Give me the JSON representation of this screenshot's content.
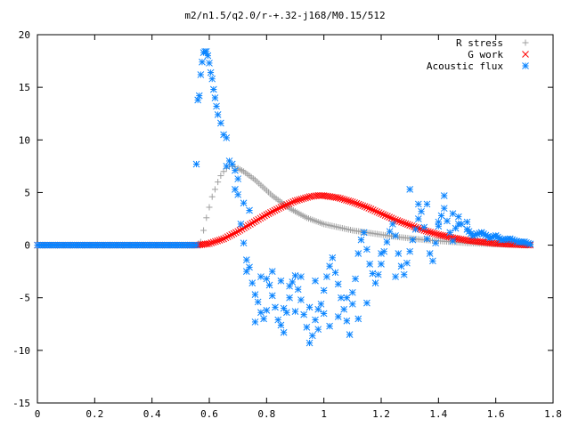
{
  "chart_data": {
    "type": "scatter",
    "title": "m2/n1.5/q2.0/r-+.32-j168/M0.15/512",
    "xlabel": "",
    "ylabel": "",
    "xlim": [
      0,
      1.8
    ],
    "ylim": [
      -15,
      20
    ],
    "grid": false,
    "legend_position": "top-right",
    "x_ticks": [
      "0",
      "0.2",
      "0.4",
      "0.6",
      "0.8",
      "1",
      "1.2",
      "1.4",
      "1.6",
      "1.8"
    ],
    "y_ticks": [
      "-15",
      "-10",
      "-5",
      "0",
      "5",
      "10",
      "15",
      "20"
    ],
    "series": [
      {
        "name": "R stress",
        "marker": "plus",
        "color": "#a0a0a0",
        "x_range": [
          0.0,
          1.72
        ],
        "points": [
          [
            0.0,
            0
          ],
          [
            0.1,
            0
          ],
          [
            0.2,
            0
          ],
          [
            0.3,
            0
          ],
          [
            0.4,
            0
          ],
          [
            0.5,
            0
          ],
          [
            0.555,
            0
          ],
          [
            0.57,
            0.3
          ],
          [
            0.58,
            1.4
          ],
          [
            0.59,
            2.6
          ],
          [
            0.6,
            3.6
          ],
          [
            0.61,
            4.6
          ],
          [
            0.62,
            5.3
          ],
          [
            0.63,
            6.0
          ],
          [
            0.64,
            6.6
          ],
          [
            0.65,
            7.0
          ],
          [
            0.66,
            7.3
          ],
          [
            0.67,
            7.5
          ],
          [
            0.68,
            7.5
          ],
          [
            0.69,
            7.45
          ],
          [
            0.7,
            7.3
          ],
          [
            0.72,
            7.0
          ],
          [
            0.74,
            6.6
          ],
          [
            0.76,
            6.2
          ],
          [
            0.78,
            5.7
          ],
          [
            0.8,
            5.2
          ],
          [
            0.82,
            4.7
          ],
          [
            0.84,
            4.3
          ],
          [
            0.86,
            3.9
          ],
          [
            0.88,
            3.5
          ],
          [
            0.9,
            3.2
          ],
          [
            0.92,
            2.9
          ],
          [
            0.94,
            2.6
          ],
          [
            0.96,
            2.4
          ],
          [
            0.98,
            2.2
          ],
          [
            1.0,
            2.0
          ],
          [
            1.05,
            1.7
          ],
          [
            1.1,
            1.4
          ],
          [
            1.15,
            1.2
          ],
          [
            1.2,
            1.0
          ],
          [
            1.25,
            0.8
          ],
          [
            1.3,
            0.65
          ],
          [
            1.35,
            0.5
          ],
          [
            1.4,
            0.4
          ],
          [
            1.45,
            0.3
          ],
          [
            1.5,
            0.2
          ],
          [
            1.55,
            0.15
          ],
          [
            1.6,
            0.1
          ],
          [
            1.65,
            0.05
          ],
          [
            1.7,
            0.02
          ],
          [
            1.72,
            0
          ]
        ]
      },
      {
        "name": "G work",
        "marker": "cross",
        "color": "#ff0000",
        "x_range": [
          0.0,
          1.72
        ],
        "points": [
          [
            0.0,
            0
          ],
          [
            0.1,
            0
          ],
          [
            0.2,
            0
          ],
          [
            0.3,
            0
          ],
          [
            0.4,
            0
          ],
          [
            0.5,
            0
          ],
          [
            0.56,
            0
          ],
          [
            0.6,
            0.15
          ],
          [
            0.65,
            0.6
          ],
          [
            0.7,
            1.3
          ],
          [
            0.75,
            2.1
          ],
          [
            0.8,
            2.9
          ],
          [
            0.85,
            3.6
          ],
          [
            0.9,
            4.2
          ],
          [
            0.95,
            4.6
          ],
          [
            0.98,
            4.72
          ],
          [
            1.0,
            4.7
          ],
          [
            1.05,
            4.5
          ],
          [
            1.1,
            4.1
          ],
          [
            1.15,
            3.6
          ],
          [
            1.2,
            3.0
          ],
          [
            1.25,
            2.4
          ],
          [
            1.3,
            1.9
          ],
          [
            1.35,
            1.4
          ],
          [
            1.4,
            1.0
          ],
          [
            1.45,
            0.7
          ],
          [
            1.5,
            0.45
          ],
          [
            1.55,
            0.3
          ],
          [
            1.6,
            0.15
          ],
          [
            1.65,
            0.08
          ],
          [
            1.7,
            0.02
          ],
          [
            1.72,
            0
          ]
        ]
      },
      {
        "name": "Acoustic flux",
        "marker": "star",
        "color": "#0a84ff",
        "points": [
          [
            0.0,
            0
          ],
          [
            0.1,
            0
          ],
          [
            0.2,
            0
          ],
          [
            0.3,
            0
          ],
          [
            0.4,
            0
          ],
          [
            0.5,
            0
          ],
          [
            0.555,
            0
          ],
          [
            0.555,
            7.7
          ],
          [
            0.56,
            13.8
          ],
          [
            0.565,
            14.2
          ],
          [
            0.57,
            16.2
          ],
          [
            0.575,
            17.4
          ],
          [
            0.58,
            18.3
          ],
          [
            0.585,
            18.4
          ],
          [
            0.59,
            18.4
          ],
          [
            0.595,
            18.0
          ],
          [
            0.6,
            17.3
          ],
          [
            0.605,
            16.4
          ],
          [
            0.61,
            15.8
          ],
          [
            0.615,
            14.8
          ],
          [
            0.62,
            14.0
          ],
          [
            0.625,
            13.2
          ],
          [
            0.63,
            12.4
          ],
          [
            0.64,
            11.6
          ],
          [
            0.65,
            10.5
          ],
          [
            0.66,
            10.2
          ],
          [
            0.67,
            8.0
          ],
          [
            0.68,
            7.7
          ],
          [
            0.69,
            5.3
          ],
          [
            0.7,
            4.8
          ],
          [
            0.71,
            2.0
          ],
          [
            0.72,
            0.2
          ],
          [
            0.73,
            -1.4
          ],
          [
            0.74,
            -2.1
          ],
          [
            0.75,
            -3.6
          ],
          [
            0.76,
            -4.7
          ],
          [
            0.77,
            -5.4
          ],
          [
            0.78,
            -6.4
          ],
          [
            0.79,
            -7.0
          ],
          [
            0.8,
            -6.2
          ],
          [
            0.81,
            -3.8
          ],
          [
            0.82,
            -4.8
          ],
          [
            0.83,
            -5.9
          ],
          [
            0.84,
            -7.1
          ],
          [
            0.85,
            -7.6
          ],
          [
            0.86,
            -8.3
          ],
          [
            0.87,
            -6.4
          ],
          [
            0.88,
            -5.0
          ],
          [
            0.89,
            -3.5
          ],
          [
            0.9,
            -2.9
          ],
          [
            0.91,
            -4.2
          ],
          [
            0.92,
            -5.2
          ],
          [
            0.93,
            -6.6
          ],
          [
            0.94,
            -7.8
          ],
          [
            0.95,
            -9.3
          ],
          [
            0.96,
            -8.6
          ],
          [
            0.97,
            -7.1
          ],
          [
            0.98,
            -6.1
          ],
          [
            0.99,
            -5.6
          ],
          [
            1.0,
            -4.3
          ],
          [
            1.01,
            -3.0
          ],
          [
            1.02,
            -2.0
          ],
          [
            1.03,
            -1.2
          ],
          [
            1.04,
            -2.6
          ],
          [
            1.05,
            -3.7
          ],
          [
            1.06,
            -5.0
          ],
          [
            1.07,
            -6.1
          ],
          [
            1.08,
            -7.2
          ],
          [
            1.09,
            -8.5
          ],
          [
            1.1,
            -5.6
          ],
          [
            1.11,
            -3.2
          ],
          [
            1.12,
            -0.8
          ],
          [
            1.13,
            0.5
          ],
          [
            1.14,
            1.2
          ],
          [
            1.15,
            -0.4
          ],
          [
            1.16,
            -1.8
          ],
          [
            1.17,
            -2.7
          ],
          [
            1.18,
            -3.6
          ],
          [
            1.19,
            -2.8
          ],
          [
            1.2,
            -1.8
          ],
          [
            1.21,
            -0.6
          ],
          [
            1.22,
            0.3
          ],
          [
            1.23,
            1.3
          ],
          [
            1.24,
            2.0
          ],
          [
            1.25,
            0.9
          ],
          [
            1.26,
            -0.8
          ],
          [
            1.27,
            -2.0
          ],
          [
            1.28,
            -2.8
          ],
          [
            1.29,
            -1.7
          ],
          [
            1.3,
            -0.6
          ],
          [
            1.31,
            0.5
          ],
          [
            1.32,
            1.5
          ],
          [
            1.33,
            2.5
          ],
          [
            1.34,
            3.2
          ],
          [
            1.35,
            1.7
          ],
          [
            1.36,
            0.6
          ],
          [
            1.37,
            -0.8
          ],
          [
            1.38,
            -1.5
          ],
          [
            1.39,
            0.2
          ],
          [
            1.4,
            1.8
          ],
          [
            1.41,
            2.8
          ],
          [
            1.42,
            3.5
          ],
          [
            1.43,
            2.3
          ],
          [
            1.44,
            1.2
          ],
          [
            1.45,
            0.4
          ],
          [
            1.46,
            1.6
          ],
          [
            1.47,
            2.7
          ],
          [
            1.48,
            2.0
          ],
          [
            1.5,
            1.5
          ],
          [
            1.55,
            1.2
          ],
          [
            1.6,
            0.9
          ],
          [
            1.65,
            0.6
          ],
          [
            1.7,
            0.3
          ],
          [
            1.72,
            0.1
          ],
          [
            1.52,
            0.9
          ],
          [
            1.58,
            0.7
          ],
          [
            1.62,
            0.5
          ],
          [
            1.68,
            0.3
          ],
          [
            1.42,
            4.7
          ],
          [
            1.3,
            5.3
          ],
          [
            0.66,
            7.5
          ],
          [
            0.69,
            7.1
          ],
          [
            0.7,
            6.3
          ],
          [
            0.72,
            4.0
          ],
          [
            0.74,
            3.3
          ],
          [
            0.78,
            -3.0
          ],
          [
            0.8,
            -3.2
          ],
          [
            0.82,
            -2.5
          ],
          [
            0.85,
            -3.4
          ],
          [
            0.88,
            -3.9
          ],
          [
            0.92,
            -3.0
          ],
          [
            0.95,
            -5.9
          ],
          [
            0.97,
            -3.4
          ],
          [
            1.0,
            -6.5
          ],
          [
            1.05,
            -6.8
          ],
          [
            1.08,
            -5.0
          ],
          [
            1.1,
            -4.5
          ],
          [
            1.12,
            -7.0
          ],
          [
            1.15,
            -5.5
          ],
          [
            1.2,
            -0.8
          ],
          [
            1.25,
            -3.0
          ],
          [
            1.33,
            3.9
          ],
          [
            1.36,
            3.9
          ],
          [
            1.4,
            2.2
          ],
          [
            1.45,
            3.0
          ],
          [
            1.47,
            2.0
          ],
          [
            1.5,
            2.2
          ],
          [
            1.02,
            -7.7
          ],
          [
            0.98,
            -8.0
          ],
          [
            0.9,
            -6.3
          ],
          [
            0.86,
            -6.0
          ],
          [
            0.76,
            -7.3
          ],
          [
            0.73,
            -2.5
          ]
        ]
      }
    ]
  }
}
